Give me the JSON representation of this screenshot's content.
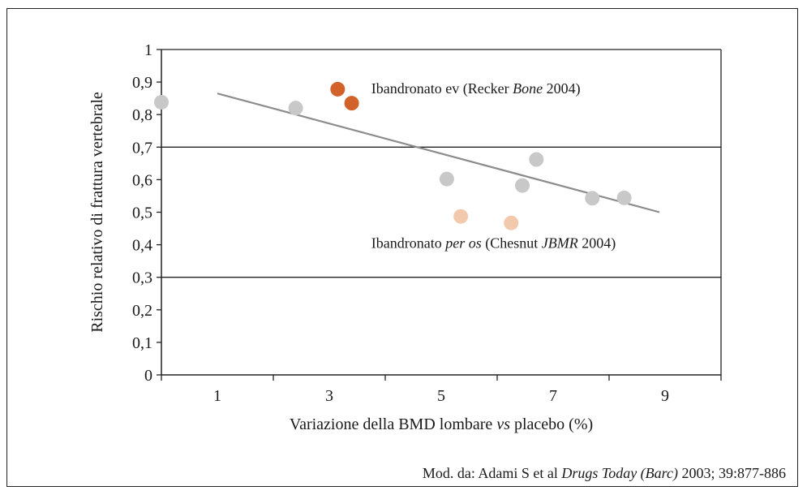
{
  "chart_data": {
    "type": "scatter",
    "ylabel": "Rischio relativo di frattura vertebrale",
    "xlabel_parts": [
      {
        "text": "Variazione della BMD lombare ",
        "italic": false
      },
      {
        "text": "vs",
        "italic": true
      },
      {
        "text": " placebo (%)",
        "italic": false
      }
    ],
    "xlim": [
      0,
      10
    ],
    "ylim": [
      0,
      1
    ],
    "x_tick_labels": [
      "1",
      "3",
      "5",
      "7",
      "9"
    ],
    "x_tick_label_values": [
      1,
      3,
      5,
      7,
      9
    ],
    "y_tick_labels": [
      "0",
      "0,1",
      "0,2",
      "0,3",
      "0,4",
      "0,5",
      "0,6",
      "0,7",
      "0,8",
      "0,9",
      "1"
    ],
    "y_tick_values": [
      0,
      0.1,
      0.2,
      0.3,
      0.4,
      0.5,
      0.6,
      0.7,
      0.8,
      0.9,
      1
    ],
    "reference_lines_y": [
      0.7,
      0.3
    ],
    "trendline": {
      "x": [
        1.0,
        8.9
      ],
      "y": [
        0.865,
        0.5
      ],
      "color": "#8c8c8c"
    },
    "series": [
      {
        "group": "other",
        "color": "#c8c8c8",
        "points": [
          {
            "x": 0.0,
            "y": 0.838
          },
          {
            "x": 2.4,
            "y": 0.82
          },
          {
            "x": 5.1,
            "y": 0.602
          },
          {
            "x": 6.45,
            "y": 0.582
          },
          {
            "x": 6.7,
            "y": 0.662
          },
          {
            "x": 7.7,
            "y": 0.543
          },
          {
            "x": 8.27,
            "y": 0.544
          }
        ]
      },
      {
        "group": "ibandronato-ev",
        "color": "#d2622a",
        "points": [
          {
            "x": 3.15,
            "y": 0.878
          },
          {
            "x": 3.4,
            "y": 0.835
          }
        ]
      },
      {
        "group": "ibandronato-per-os",
        "color": "#f3c9ad",
        "points": [
          {
            "x": 5.35,
            "y": 0.487
          },
          {
            "x": 6.25,
            "y": 0.467
          }
        ]
      }
    ],
    "annotations": [
      {
        "id": "ev",
        "anchor": {
          "x": 3.75,
          "y": 0.865
        },
        "parts": [
          {
            "text": "Ibandronato ev (Recker ",
            "italic": false
          },
          {
            "text": "Bone",
            "italic": true
          },
          {
            "text": " 2004)",
            "italic": false
          }
        ]
      },
      {
        "id": "per-os",
        "anchor": {
          "x": 3.75,
          "y": 0.39
        },
        "parts": [
          {
            "text": "Ibandronato ",
            "italic": false
          },
          {
            "text": "per os",
            "italic": true
          },
          {
            "text": " (Chesnut ",
            "italic": false
          },
          {
            "text": "JBMR",
            "italic": true
          },
          {
            "text": " 2004)",
            "italic": false
          }
        ]
      }
    ]
  },
  "source_parts": [
    {
      "text": "Mod. da: Adami S et al ",
      "italic": false
    },
    {
      "text": "Drugs Today (Barc)",
      "italic": true
    },
    {
      "text": " 2003; 39:877-886",
      "italic": false
    }
  ]
}
